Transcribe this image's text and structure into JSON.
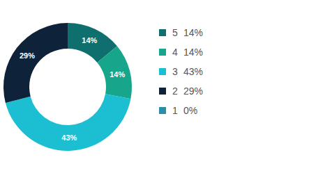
{
  "chart_data": {
    "type": "pie",
    "categories": [
      "5",
      "4",
      "3",
      "2",
      "1"
    ],
    "values": [
      14,
      14,
      43,
      29,
      0
    ],
    "value_labels": [
      "14%",
      "14%",
      "43%",
      "29%",
      "0%"
    ],
    "colors": [
      "#0f6e6e",
      "#17a68c",
      "#1cbfd2",
      "#0e2239",
      "#2a8ea6"
    ],
    "data_labels": true,
    "legend": "right"
  }
}
